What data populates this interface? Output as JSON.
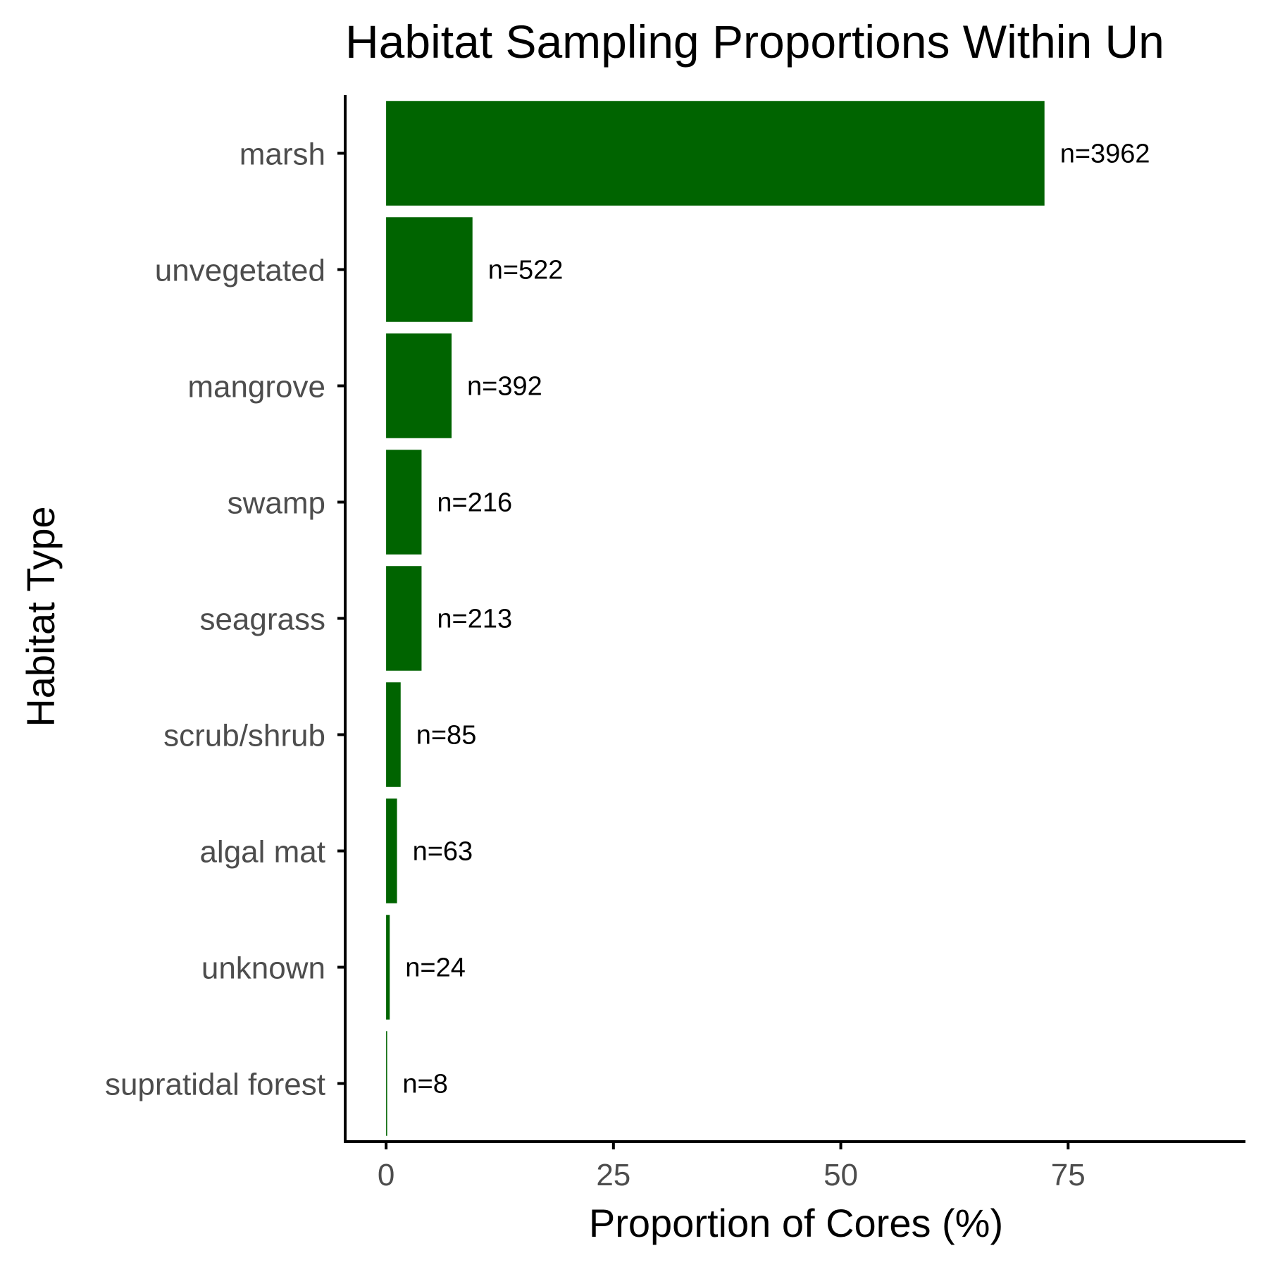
{
  "chart_data": {
    "type": "bar",
    "orientation": "horizontal",
    "title": "Habitat Sampling Proportions Within Un",
    "xlabel": "Proportion of Cores (%)",
    "ylabel": "Habitat Type",
    "categories": [
      "marsh",
      "unvegetated",
      "mangrove",
      "swamp",
      "seagrass",
      "scrub/shrub",
      "algal mat",
      "unknown",
      "supratidal forest"
    ],
    "values": [
      72.4,
      9.5,
      7.2,
      3.9,
      3.9,
      1.6,
      1.2,
      0.4,
      0.1
    ],
    "data_labels": [
      "n=3962",
      "n=522",
      "n=392",
      "n=216",
      "n=213",
      "n=85",
      "n=63",
      "n=24",
      "n=8"
    ],
    "x_ticks": [
      0,
      25,
      50,
      75
    ],
    "x_tick_labels": [
      "0",
      "25",
      "50",
      "75"
    ],
    "xlim": [
      -4.5,
      94.5
    ],
    "grid": false,
    "legend": "none",
    "bar_color": "#006400"
  }
}
